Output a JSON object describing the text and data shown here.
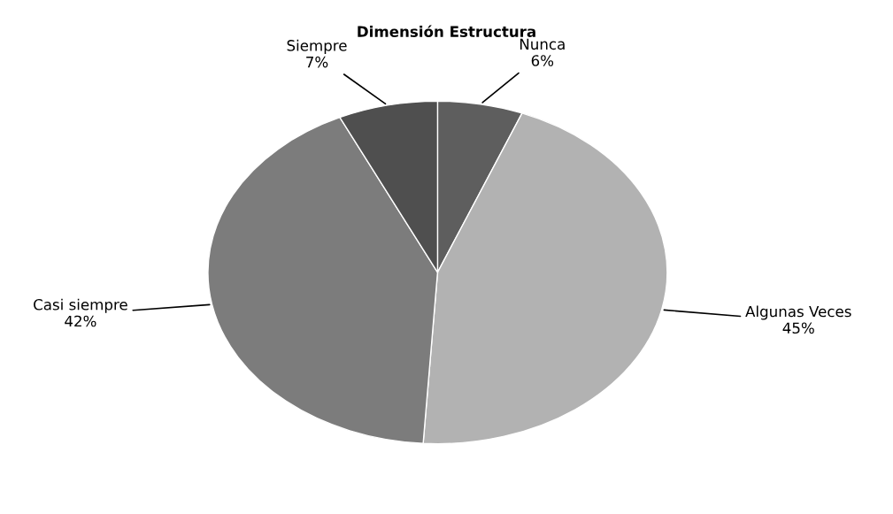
{
  "chart_data": {
    "type": "pie",
    "title": "Dimensión Estructura",
    "categories": [
      "Nunca",
      "Algunas Veces",
      "Casi siempre",
      "Siempre"
    ],
    "values": [
      6,
      45,
      42,
      7
    ],
    "value_labels": [
      "6%",
      "45%",
      "42%",
      "7%"
    ],
    "colors": [
      "#5e5e5e",
      "#b2b2b2",
      "#7c7c7c",
      "#4f4f4f"
    ],
    "legend": false
  }
}
